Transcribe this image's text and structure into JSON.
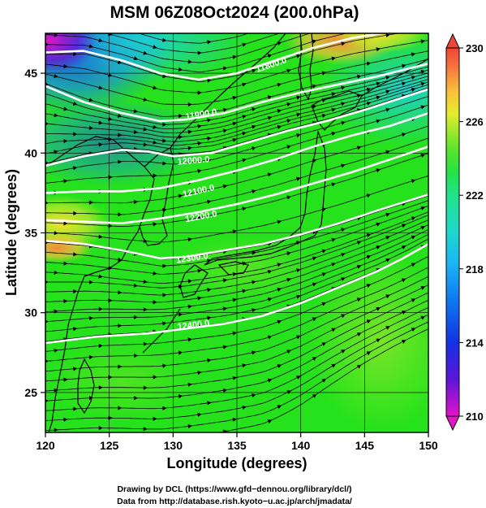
{
  "chart_data": {
    "type": "heatmap",
    "title": "MSM 06Z08Oct2024 (200.0hPa)",
    "xlabel": "Longitude (degrees)",
    "ylabel": "Latitude  (degrees)",
    "xlim": [
      120,
      150
    ],
    "ylim": [
      22.5,
      47.5
    ],
    "x_ticks": [
      120,
      125,
      130,
      135,
      140,
      145,
      150
    ],
    "y_ticks": [
      25,
      30,
      35,
      40,
      45
    ],
    "x_tick_labels": [
      "120",
      "125",
      "130",
      "135",
      "140",
      "145",
      "150"
    ],
    "y_tick_labels": [
      "25",
      "30",
      "35",
      "40",
      "45"
    ],
    "grid": true,
    "colorbar": {
      "range": [
        210,
        230
      ],
      "ticks": [
        "210",
        "214",
        "218",
        "222",
        "226",
        "230"
      ],
      "extend": "both",
      "placement": "right"
    },
    "contour_labels": [
      "11800.0",
      "11900.0",
      "12000.0",
      "12100.0",
      "12200.0",
      "12300.0",
      "12400.0"
    ],
    "contours": [
      {
        "level": 11800,
        "points": [
          [
            120,
            46.3
          ],
          [
            123,
            46.4
          ],
          [
            126,
            45.8
          ],
          [
            129,
            45.0
          ],
          [
            132,
            44.6
          ],
          [
            135,
            45.0
          ],
          [
            138,
            45.8
          ],
          [
            141,
            46.6
          ],
          [
            144,
            47.2
          ],
          [
            147,
            47.6
          ],
          [
            150,
            47.9
          ]
        ],
        "label_at": [
          137.7,
          45.5
        ]
      },
      {
        "level": 11900,
        "points": [
          [
            120,
            44.2
          ],
          [
            123,
            43.2
          ],
          [
            126,
            42.5
          ],
          [
            129,
            42.0
          ],
          [
            131,
            42.1
          ],
          [
            134,
            42.5
          ],
          [
            137,
            43.2
          ],
          [
            140,
            43.8
          ],
          [
            143,
            44.3
          ],
          [
            146,
            44.8
          ],
          [
            150,
            45.6
          ]
        ],
        "label_at": [
          132.2,
          42.4
        ]
      },
      {
        "level": 12000,
        "points": [
          [
            120,
            39.2
          ],
          [
            123,
            39.8
          ],
          [
            126,
            40.2
          ],
          [
            128,
            40.1
          ],
          [
            130,
            39.8
          ],
          [
            133,
            40.0
          ],
          [
            136,
            40.7
          ],
          [
            139,
            41.4
          ],
          [
            142,
            42.0
          ],
          [
            145,
            42.7
          ],
          [
            150,
            44.0
          ]
        ],
        "label_at": [
          131.6,
          39.5
        ]
      },
      {
        "level": 12100,
        "points": [
          [
            120,
            37.5
          ],
          [
            123,
            37.6
          ],
          [
            126,
            37.6
          ],
          [
            129,
            37.8
          ],
          [
            132,
            38.3
          ],
          [
            135,
            38.9
          ],
          [
            138,
            39.6
          ],
          [
            141,
            40.4
          ],
          [
            144,
            41.1
          ],
          [
            147,
            41.7
          ],
          [
            150,
            42.5
          ]
        ],
        "label_at": [
          132.0,
          37.6
        ]
      },
      {
        "level": 12200,
        "points": [
          [
            120,
            35.8
          ],
          [
            123,
            35.7
          ],
          [
            126,
            35.6
          ],
          [
            129,
            35.9
          ],
          [
            132,
            36.3
          ],
          [
            135,
            36.8
          ],
          [
            138,
            37.4
          ],
          [
            141,
            38.1
          ],
          [
            144,
            38.8
          ],
          [
            147,
            39.6
          ],
          [
            150,
            40.4
          ]
        ],
        "label_at": [
          132.2,
          36.0
        ]
      },
      {
        "level": 12300,
        "points": [
          [
            120,
            34.5
          ],
          [
            123,
            34.3
          ],
          [
            126,
            33.9
          ],
          [
            129,
            33.4
          ],
          [
            131,
            33.5
          ],
          [
            134,
            33.9
          ],
          [
            137,
            34.3
          ],
          [
            140,
            34.9
          ],
          [
            143,
            35.6
          ],
          [
            146,
            36.4
          ],
          [
            150,
            37.4
          ]
        ],
        "label_at": [
          131.5,
          33.4
        ]
      },
      {
        "level": 12400,
        "points": [
          [
            120,
            28.1
          ],
          [
            124,
            28.5
          ],
          [
            128,
            28.7
          ],
          [
            131,
            29.0
          ],
          [
            134,
            29.3
          ],
          [
            137,
            29.8
          ],
          [
            140,
            30.6
          ],
          [
            143,
            31.6
          ],
          [
            146,
            32.6
          ],
          [
            148,
            33.4
          ],
          [
            150,
            34.3
          ]
        ],
        "label_at": [
          131.6,
          29.2
        ]
      }
    ]
  },
  "credits": {
    "line1": "Drawing by DCL (https://www.gfd−dennou.org/library/dcl/)",
    "line2": "Data from http://database.rish.kyoto−u.ac.jp/arch/jmadata/"
  },
  "colors": {
    "green": "#24e41a",
    "yellow": "#f2ea2c",
    "cyan": "#18d8dc",
    "blue": "#1456ee",
    "magenta": "#e015d0"
  }
}
